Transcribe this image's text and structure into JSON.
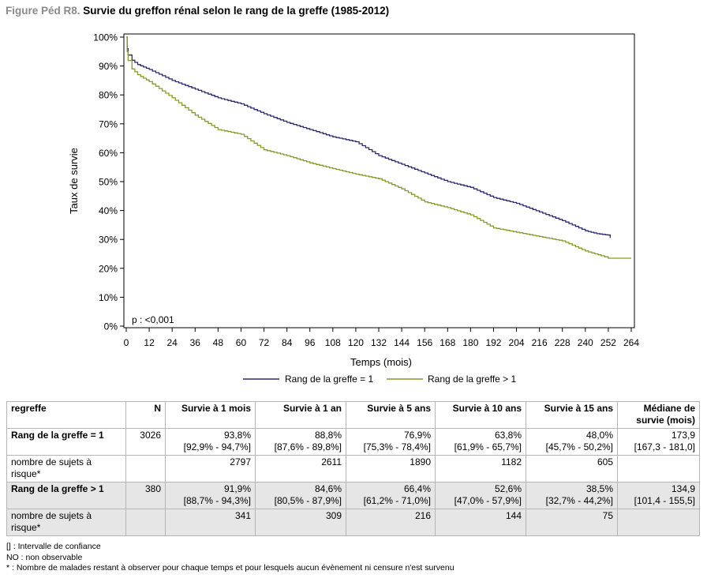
{
  "title": {
    "label": "Figure Péd R8.",
    "text": "Survie du greffon rénal selon le rang de la greffe (1985-2012)"
  },
  "chart_data": {
    "type": "line",
    "title": "Survie du greffon rénal selon le rang de la greffe (1985-2012)",
    "xlabel": "Temps (mois)",
    "ylabel": "Taux de survie",
    "xlim": [
      0,
      264
    ],
    "ylim": [
      0,
      100
    ],
    "x_ticks": [
      0,
      12,
      24,
      36,
      48,
      60,
      72,
      84,
      96,
      108,
      120,
      132,
      144,
      156,
      168,
      180,
      192,
      204,
      216,
      228,
      240,
      252,
      264
    ],
    "y_ticks": [
      0,
      10,
      20,
      30,
      40,
      50,
      60,
      70,
      80,
      90,
      100
    ],
    "y_tick_labels": [
      "0%",
      "10%",
      "20%",
      "30%",
      "40%",
      "50%",
      "60%",
      "70%",
      "80%",
      "90%",
      "100%"
    ],
    "annotation": "p : <0,001",
    "grid": false,
    "legend_position": "bottom",
    "series": [
      {
        "name": "Rang de la greffe = 1",
        "color": "#2b2a6e",
        "points": [
          [
            0,
            100
          ],
          [
            0.5,
            96
          ],
          [
            1,
            93.8
          ],
          [
            3,
            92
          ],
          [
            6,
            90.5
          ],
          [
            12,
            88.8
          ],
          [
            24,
            85
          ],
          [
            36,
            82
          ],
          [
            48,
            79
          ],
          [
            60,
            76.9
          ],
          [
            72,
            73.5
          ],
          [
            84,
            70.5
          ],
          [
            96,
            68
          ],
          [
            108,
            65.5
          ],
          [
            120,
            63.8
          ],
          [
            132,
            59
          ],
          [
            144,
            56
          ],
          [
            156,
            53
          ],
          [
            168,
            50
          ],
          [
            180,
            48
          ],
          [
            192,
            44.5
          ],
          [
            204,
            42.5
          ],
          [
            216,
            39.5
          ],
          [
            228,
            36.5
          ],
          [
            240,
            33
          ],
          [
            246,
            32
          ],
          [
            252,
            31.5
          ],
          [
            253,
            30.5
          ]
        ]
      },
      {
        "name": "Rang de la greffe > 1",
        "color": "#8a9a2a",
        "points": [
          [
            0,
            100
          ],
          [
            0.5,
            95
          ],
          [
            1,
            91.9
          ],
          [
            3,
            89
          ],
          [
            6,
            87
          ],
          [
            12,
            84.6
          ],
          [
            24,
            79
          ],
          [
            36,
            73
          ],
          [
            48,
            68
          ],
          [
            60,
            66.4
          ],
          [
            72,
            61
          ],
          [
            84,
            59
          ],
          [
            96,
            56.5
          ],
          [
            108,
            54.5
          ],
          [
            120,
            52.6
          ],
          [
            132,
            51
          ],
          [
            144,
            47.5
          ],
          [
            156,
            43
          ],
          [
            168,
            41
          ],
          [
            180,
            38.5
          ],
          [
            192,
            34
          ],
          [
            204,
            32.5
          ],
          [
            216,
            31
          ],
          [
            228,
            29.5
          ],
          [
            240,
            26
          ],
          [
            250,
            24
          ],
          [
            252,
            23.5
          ],
          [
            264,
            23.5
          ]
        ]
      }
    ]
  },
  "table": {
    "headers": [
      "regreffe",
      "N",
      "Survie à 1 mois",
      "Survie à 1 an",
      "Survie à 5 ans",
      "Survie à 10 ans",
      "Survie à 15 ans",
      "Médiane de survie (mois)"
    ],
    "rows": [
      {
        "label": "Rang de la greffe = 1",
        "n": "3026",
        "vals": [
          [
            "93,8%",
            "[92,9% - 94,7%]"
          ],
          [
            "88,8%",
            "[87,6% - 89,8%]"
          ],
          [
            "76,9%",
            "[75,3% - 78,4%]"
          ],
          [
            "63,8%",
            "[61,9% - 65,7%]"
          ],
          [
            "48,0%",
            "[45,7% - 50,2%]"
          ],
          [
            "173,9",
            "[167,3 - 181,0]"
          ]
        ]
      },
      {
        "label": "nombre de sujets à risque*",
        "n": "",
        "vals": [
          "2797",
          "2611",
          "1890",
          "1182",
          "605",
          ""
        ]
      },
      {
        "label": "Rang de la greffe > 1",
        "n": "380",
        "vals": [
          [
            "91,9%",
            "[88,7% - 94,3%]"
          ],
          [
            "84,6%",
            "[80,5% - 87,9%]"
          ],
          [
            "66,4%",
            "[61,2% - 71,0%]"
          ],
          [
            "52,6%",
            "[47,0% - 57,9%]"
          ],
          [
            "38,5%",
            "[32,7% - 44,2%]"
          ],
          [
            "134,9",
            "[101,4 - 155,5]"
          ]
        ]
      },
      {
        "label": "nombre de sujets à risque*",
        "n": "",
        "vals": [
          "341",
          "309",
          "216",
          "144",
          "75",
          ""
        ]
      }
    ]
  },
  "notes": [
    "[] : Intervalle de confiance",
    "NO : non observable",
    "* : Nombre de malades restant à observer pour chaque temps et pour lesquels aucun évènement ni censure n'est survenu"
  ]
}
